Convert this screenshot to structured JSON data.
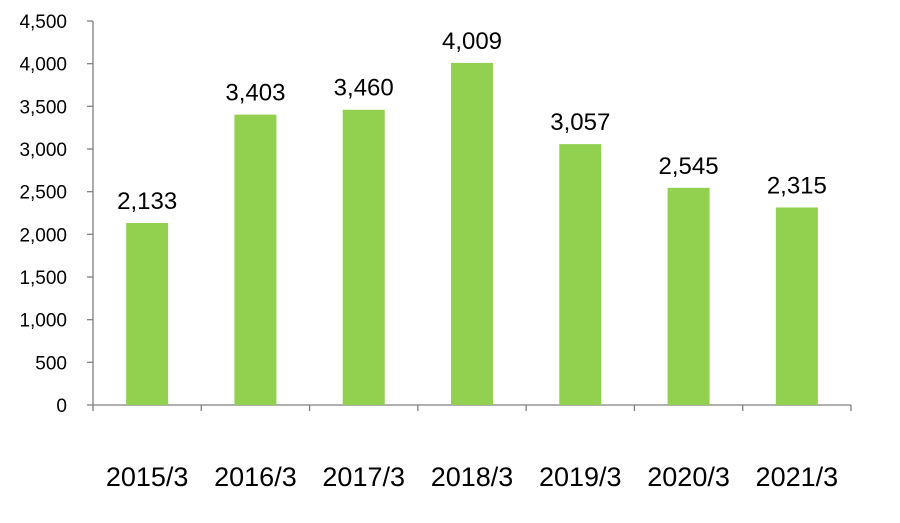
{
  "chart_data": {
    "type": "bar",
    "categories": [
      "2015/3",
      "2016/3",
      "2017/3",
      "2018/3",
      "2019/3",
      "2020/3",
      "2021/3"
    ],
    "values": [
      2133,
      3403,
      3460,
      4009,
      3057,
      2545,
      2315
    ],
    "data_labels": [
      "2,133",
      "3,403",
      "3,460",
      "4,009",
      "3,057",
      "2,545",
      "2,315"
    ],
    "yticks": [
      0,
      500,
      1000,
      1500,
      2000,
      2500,
      3000,
      3500,
      4000,
      4500
    ],
    "ytick_labels": [
      "0",
      "500",
      "1,000",
      "1,500",
      "2,000",
      "2,500",
      "3,000",
      "3,500",
      "4,000",
      "4,500"
    ],
    "ylim": [
      0,
      4500
    ],
    "title": "",
    "xlabel": "",
    "ylabel": "",
    "grid": false,
    "legend": "none",
    "colors": {
      "bar": "#92D050",
      "axis": "#808080",
      "text": "#000000"
    }
  }
}
